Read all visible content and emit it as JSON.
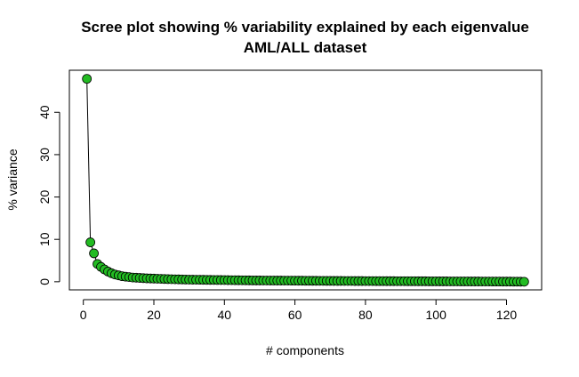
{
  "chart_data": {
    "type": "line",
    "title": "Scree plot showing % variability explained by each eigenvalue",
    "subtitle": "AML/ALL dataset",
    "xlabel": "# components",
    "ylabel": "% variance",
    "xlim": [
      1,
      125
    ],
    "ylim": [
      0,
      48
    ],
    "x_ticks": [
      0,
      20,
      40,
      60,
      80,
      100,
      120
    ],
    "y_ticks": [
      0,
      10,
      20,
      30,
      40
    ],
    "grid": false,
    "legend": "none",
    "colors": {
      "point_fill": "#22bb22",
      "point_stroke": "#000000",
      "line": "#000000"
    },
    "series": [
      {
        "values": [
          47.9,
          9.3,
          6.7,
          4.2,
          3.5,
          2.9,
          2.4,
          2.0,
          1.7,
          1.5,
          1.3,
          1.2,
          1.1,
          1.0,
          0.95,
          0.9,
          0.85,
          0.8,
          0.77,
          0.74,
          0.71,
          0.68,
          0.65,
          0.62,
          0.6,
          0.58,
          0.56,
          0.54,
          0.52,
          0.5,
          0.48,
          0.47,
          0.46,
          0.45,
          0.44,
          0.43,
          0.42,
          0.41,
          0.4,
          0.39,
          0.38,
          0.37,
          0.36,
          0.35,
          0.34,
          0.33,
          0.32,
          0.31,
          0.3,
          0.3,
          0.29,
          0.29,
          0.28,
          0.28,
          0.27,
          0.27,
          0.26,
          0.26,
          0.25,
          0.25,
          0.24,
          0.24,
          0.23,
          0.23,
          0.22,
          0.22,
          0.21,
          0.21,
          0.2,
          0.2,
          0.19,
          0.19,
          0.19,
          0.18,
          0.18,
          0.18,
          0.17,
          0.17,
          0.17,
          0.16,
          0.16,
          0.16,
          0.15,
          0.15,
          0.15,
          0.14,
          0.14,
          0.14,
          0.13,
          0.13,
          0.13,
          0.12,
          0.12,
          0.12,
          0.11,
          0.11,
          0.11,
          0.1,
          0.1,
          0.1,
          0.09,
          0.09,
          0.09,
          0.08,
          0.08,
          0.08,
          0.07,
          0.07,
          0.07,
          0.06,
          0.06,
          0.06,
          0.05,
          0.05,
          0.05,
          0.04,
          0.04,
          0.04,
          0.03,
          0.03,
          0.03,
          0.02,
          0.02,
          0.01,
          0.0
        ]
      }
    ]
  }
}
